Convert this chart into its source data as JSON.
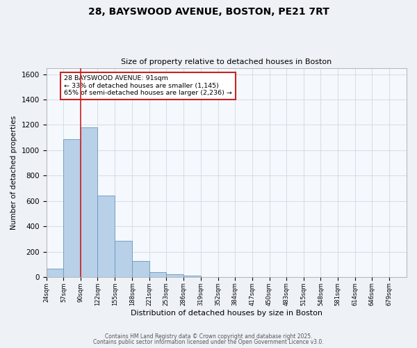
{
  "title_line1": "28, BAYSWOOD AVENUE, BOSTON, PE21 7RT",
  "title_line2": "Size of property relative to detached houses in Boston",
  "xlabel": "Distribution of detached houses by size in Boston",
  "ylabel": "Number of detached properties",
  "bin_labels": [
    "24sqm",
    "57sqm",
    "90sqm",
    "122sqm",
    "155sqm",
    "188sqm",
    "221sqm",
    "253sqm",
    "286sqm",
    "319sqm",
    "352sqm",
    "384sqm",
    "417sqm",
    "450sqm",
    "483sqm",
    "515sqm",
    "548sqm",
    "581sqm",
    "614sqm",
    "646sqm",
    "679sqm"
  ],
  "bin_edges": [
    24,
    57,
    90,
    122,
    155,
    188,
    221,
    253,
    286,
    319,
    352,
    384,
    417,
    450,
    483,
    515,
    548,
    581,
    614,
    646,
    679,
    712
  ],
  "bar_heights": [
    63,
    1090,
    1180,
    645,
    285,
    125,
    40,
    20,
    10,
    0,
    0,
    0,
    0,
    0,
    0,
    0,
    0,
    0,
    0,
    0,
    0
  ],
  "bar_color": "#b8d0e8",
  "bar_edge_color": "#6699bb",
  "vline_color": "#cc2222",
  "vline_x": 90,
  "annotation_title": "28 BAYSWOOD AVENUE: 91sqm",
  "annotation_line2": "← 33% of detached houses are smaller (1,145)",
  "annotation_line3": "65% of semi-detached houses are larger (2,236) →",
  "annotation_box_color": "#ffffff",
  "annotation_box_edge": "#cc2222",
  "ylim": [
    0,
    1650
  ],
  "yticks": [
    0,
    200,
    400,
    600,
    800,
    1000,
    1200,
    1400,
    1600
  ],
  "footer_line1": "Contains HM Land Registry data © Crown copyright and database right 2025.",
  "footer_line2": "Contains public sector information licensed under the Open Government Licence v3.0.",
  "bg_color": "#eef2f7",
  "plot_bg_color": "#f5f8fc",
  "grid_color": "#c8d4e4"
}
